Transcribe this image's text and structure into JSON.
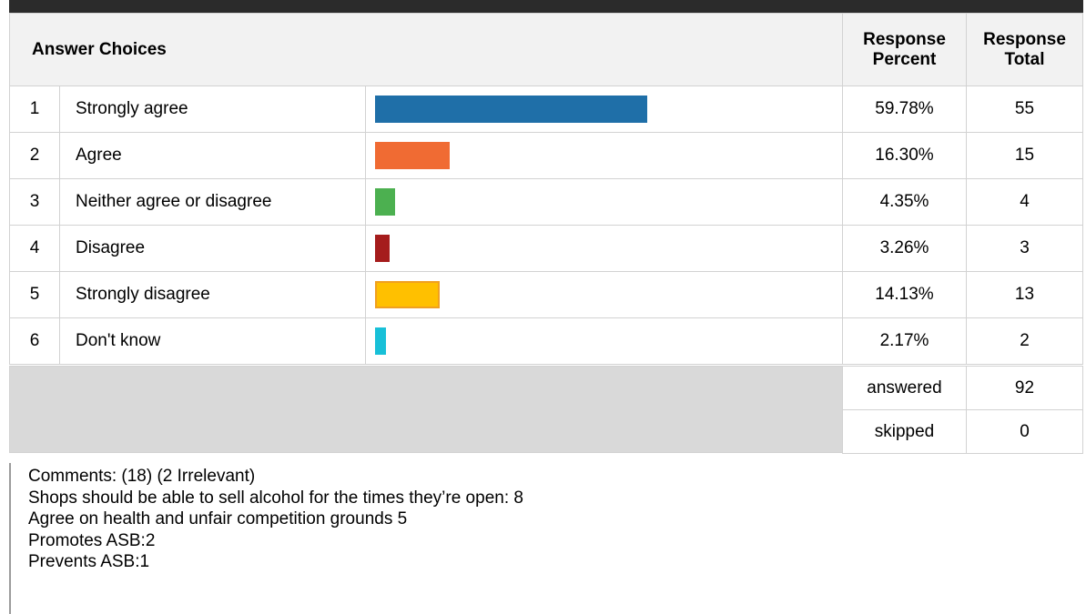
{
  "table": {
    "headers": {
      "answer_choices": "Answer Choices",
      "response_percent_line1": "Response",
      "response_percent_line2": "Percent",
      "response_total_line1": "Response",
      "response_total_line2": "Total"
    },
    "rows": [
      {
        "index": "1",
        "label": "Strongly agree",
        "percent": "59.78%",
        "total": "55",
        "fraction": 0.5978,
        "color": "#1f6fa8"
      },
      {
        "index": "2",
        "label": "Agree",
        "percent": "16.30%",
        "total": "15",
        "fraction": 0.163,
        "color": "#f06b33"
      },
      {
        "index": "3",
        "label": "Neither agree or disagree",
        "percent": "4.35%",
        "total": "4",
        "fraction": 0.0435,
        "color": "#4cb050"
      },
      {
        "index": "4",
        "label": "Disagree",
        "percent": "3.26%",
        "total": "3",
        "fraction": 0.0326,
        "color": "#a51c1c"
      },
      {
        "index": "5",
        "label": "Strongly disagree",
        "percent": "14.13%",
        "total": "13",
        "fraction": 0.1413,
        "color": "#ffc000",
        "border_color": "#f0a020"
      },
      {
        "index": "6",
        "label": "Don't know",
        "percent": "2.17%",
        "total": "2",
        "fraction": 0.0217,
        "color": "#18c0d8"
      }
    ],
    "footer": {
      "answered_label": "answered",
      "answered_value": "92",
      "skipped_label": "skipped",
      "skipped_value": "0"
    }
  },
  "comments": [
    "Comments: (18) (2 Irrelevant)",
    "Shops should be able to sell alcohol for the times they’re open: 8",
    "Agree on health and unfair competition grounds 5",
    "Promotes ASB:2",
    "Prevents ASB:1"
  ]
}
